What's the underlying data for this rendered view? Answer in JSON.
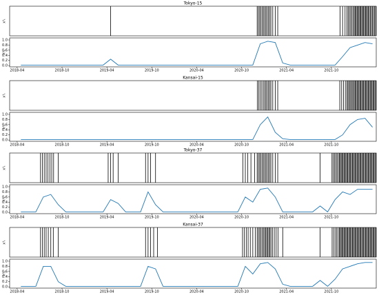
{
  "chart_data": [
    {
      "type": "event",
      "title": "Tokyo-15",
      "ylabel": "x¹ₜ",
      "color": "#000000",
      "xlim": [
        "2018-03",
        "2022-04"
      ],
      "x": [
        "2019-04",
        "2020-12",
        "2020-12",
        "2020-12",
        "2020-12",
        "2020-12",
        "2020-12",
        "2021-01",
        "2021-01",
        "2021-01",
        "2021-01",
        "2021-01",
        "2021-01",
        "2021-02",
        "2021-02",
        "2021-02",
        "2021-11",
        "2021-11",
        "2021-11",
        "2021-12",
        "2021-12",
        "2021-12",
        "2021-12",
        "2021-12",
        "2021-12",
        "2022-01",
        "2022-01",
        "2022-01",
        "2022-01",
        "2022-01",
        "2022-01",
        "2022-01",
        "2022-01",
        "2022-02",
        "2022-02",
        "2022-02",
        "2022-02",
        "2022-02",
        "2022-02",
        "2022-02",
        "2022-02",
        "2022-03",
        "2022-03",
        "2022-03",
        "2022-03",
        "2022-03",
        "2022-03",
        "2022-03"
      ]
    },
    {
      "type": "line",
      "ylabel": "λ¹ₜ",
      "color": "#1f77b4",
      "xlim": [
        "2018-03",
        "2022-04"
      ],
      "ylim": [
        -0.05,
        1.08
      ],
      "yticks": [
        {
          "value": 0,
          "label": "0.0"
        },
        0.2,
        0.4,
        0.6,
        0.8,
        {
          "value": 1,
          "label": "1.0"
        }
      ],
      "xticks": [
        "2018-04",
        "2018-10",
        "2019-04",
        "2019-10",
        "2020-04",
        "2020-10",
        "2021-04",
        "2021-10"
      ],
      "x": [
        "2018-04",
        "2018-05",
        "2018-06",
        "2018-07",
        "2018-08",
        "2018-09",
        "2018-10",
        "2018-11",
        "2018-12",
        "2019-01",
        "2019-02",
        "2019-03",
        "2019-04",
        "2019-05",
        "2019-06",
        "2019-07",
        "2019-08",
        "2019-09",
        "2019-10",
        "2019-11",
        "2019-12",
        "2020-01",
        "2020-02",
        "2020-03",
        "2020-04",
        "2020-05",
        "2020-06",
        "2020-07",
        "2020-08",
        "2020-09",
        "2020-10",
        "2020-11",
        "2020-12",
        "2021-01",
        "2021-02",
        "2021-03",
        "2021-04",
        "2021-05",
        "2021-06",
        "2021-07",
        "2021-08",
        "2021-09",
        "2021-10",
        "2021-11",
        "2021-12",
        "2022-01",
        "2022-02",
        "2022-03"
      ],
      "values": [
        0.02,
        0.02,
        0.02,
        0.02,
        0.02,
        0.02,
        0.02,
        0.02,
        0.02,
        0.02,
        0.02,
        0.02,
        0.25,
        0.02,
        0.02,
        0.02,
        0.02,
        0.02,
        0.02,
        0.02,
        0.02,
        0.02,
        0.02,
        0.02,
        0.02,
        0.02,
        0.02,
        0.02,
        0.02,
        0.02,
        0.02,
        0.02,
        0.85,
        0.95,
        0.9,
        0.1,
        0.02,
        0.02,
        0.02,
        0.02,
        0.02,
        0.02,
        0.02,
        0.35,
        0.7,
        0.8,
        0.9,
        0.85
      ]
    },
    {
      "type": "event",
      "title": "Kansai-15",
      "ylabel": "x¹ₜ",
      "color": "#000000",
      "xlim": [
        "2018-03",
        "2022-04"
      ],
      "x": [
        "2020-12",
        "2020-12",
        "2020-12",
        "2020-12",
        "2020-12",
        "2021-01",
        "2021-01",
        "2021-01",
        "2021-01",
        "2021-01",
        "2021-01",
        "2021-02",
        "2021-02",
        "2021-02",
        "2021-11",
        "2021-11",
        "2021-11",
        "2021-11",
        "2021-12",
        "2021-12",
        "2021-12",
        "2021-12",
        "2021-12",
        "2021-12",
        "2021-12",
        "2022-01",
        "2022-01",
        "2022-01",
        "2022-01",
        "2022-01",
        "2022-01",
        "2022-01",
        "2022-01",
        "2022-02",
        "2022-02",
        "2022-02",
        "2022-02",
        "2022-02",
        "2022-02",
        "2022-02",
        "2022-02",
        "2022-03",
        "2022-03",
        "2022-03",
        "2022-03",
        "2022-03",
        "2022-03",
        "2022-03",
        "2022-03"
      ]
    },
    {
      "type": "line",
      "ylabel": "λ¹ₜ",
      "color": "#1f77b4",
      "xlim": [
        "2018-03",
        "2022-04"
      ],
      "ylim": [
        -0.05,
        1.08
      ],
      "yticks": [
        {
          "value": 0,
          "label": "0.0"
        },
        0.2,
        0.4,
        0.6,
        0.8,
        {
          "value": 1,
          "label": "1.0"
        }
      ],
      "xticks": [
        "2018-04",
        "2018-10",
        "2019-04",
        "2019-10",
        "2020-04",
        "2020-10",
        "2021-04",
        "2021-10"
      ],
      "x": [
        "2018-04",
        "2018-05",
        "2018-06",
        "2018-07",
        "2018-08",
        "2018-09",
        "2018-10",
        "2018-11",
        "2018-12",
        "2019-01",
        "2019-02",
        "2019-03",
        "2019-04",
        "2019-05",
        "2019-06",
        "2019-07",
        "2019-08",
        "2019-09",
        "2019-10",
        "2019-11",
        "2019-12",
        "2020-01",
        "2020-02",
        "2020-03",
        "2020-04",
        "2020-05",
        "2020-06",
        "2020-07",
        "2020-08",
        "2020-09",
        "2020-10",
        "2020-11",
        "2020-12",
        "2021-01",
        "2021-02",
        "2021-03",
        "2021-04",
        "2021-05",
        "2021-06",
        "2021-07",
        "2021-08",
        "2021-09",
        "2021-10",
        "2021-11",
        "2021-12",
        "2022-01",
        "2022-02",
        "2022-03"
      ],
      "values": [
        0.02,
        0.02,
        0.02,
        0.02,
        0.02,
        0.02,
        0.02,
        0.02,
        0.02,
        0.02,
        0.02,
        0.02,
        0.02,
        0.02,
        0.02,
        0.02,
        0.02,
        0.02,
        0.02,
        0.02,
        0.02,
        0.02,
        0.02,
        0.02,
        0.02,
        0.02,
        0.02,
        0.02,
        0.02,
        0.02,
        0.02,
        0.02,
        0.6,
        0.9,
        0.3,
        0.05,
        0.02,
        0.02,
        0.02,
        0.02,
        0.02,
        0.02,
        0.02,
        0.2,
        0.6,
        0.8,
        0.85,
        0.5
      ]
    },
    {
      "type": "event",
      "title": "Tokyo-37",
      "ylabel": "x¹ₜ",
      "color": "#000000",
      "xlim": [
        "2018-03",
        "2022-04"
      ],
      "x": [
        "2018-07",
        "2018-07",
        "2018-07",
        "2018-07",
        "2018-08",
        "2018-08",
        "2018-08",
        "2018-08",
        "2018-09",
        "2019-04",
        "2019-04",
        "2019-04",
        "2019-05",
        "2019-09",
        "2019-09",
        "2019-09",
        "2019-10",
        "2020-10",
        "2020-10",
        "2020-10",
        "2020-11",
        "2020-11",
        "2020-12",
        "2020-12",
        "2020-12",
        "2020-12",
        "2020-12",
        "2020-12",
        "2021-01",
        "2021-01",
        "2021-01",
        "2021-01",
        "2021-01",
        "2021-01",
        "2021-02",
        "2021-02",
        "2021-02",
        "2021-08",
        "2021-10",
        "2021-10",
        "2021-10",
        "2021-10",
        "2021-10",
        "2021-10",
        "2021-11",
        "2021-11",
        "2021-11",
        "2021-11",
        "2021-11",
        "2021-11",
        "2021-11",
        "2021-11",
        "2021-12",
        "2021-12",
        "2021-12",
        "2021-12",
        "2021-12",
        "2021-12",
        "2021-12",
        "2021-12",
        "2022-01",
        "2022-01",
        "2022-01",
        "2022-01",
        "2022-01",
        "2022-01",
        "2022-01",
        "2022-01",
        "2022-02",
        "2022-02",
        "2022-02",
        "2022-02",
        "2022-02",
        "2022-02",
        "2022-02",
        "2022-02",
        "2022-03",
        "2022-03",
        "2022-03",
        "2022-03",
        "2022-03",
        "2022-03",
        "2022-03",
        "2022-03"
      ]
    },
    {
      "type": "line",
      "ylabel": "λ¹ₜ",
      "color": "#1f77b4",
      "xlim": [
        "2018-03",
        "2022-04"
      ],
      "ylim": [
        -0.05,
        1.08
      ],
      "yticks": [
        {
          "value": 0,
          "label": "0.0"
        },
        0.2,
        0.4,
        0.6,
        0.8,
        {
          "value": 1,
          "label": "1.0"
        }
      ],
      "xticks": [
        "2018-04",
        "2018-10",
        "2019-04",
        "2019-10",
        "2020-04",
        "2020-10",
        "2021-04",
        "2021-10"
      ],
      "x": [
        "2018-04",
        "2018-05",
        "2018-06",
        "2018-07",
        "2018-08",
        "2018-09",
        "2018-10",
        "2018-11",
        "2018-12",
        "2019-01",
        "2019-02",
        "2019-03",
        "2019-04",
        "2019-05",
        "2019-06",
        "2019-07",
        "2019-08",
        "2019-09",
        "2019-10",
        "2019-11",
        "2019-12",
        "2020-01",
        "2020-02",
        "2020-03",
        "2020-04",
        "2020-05",
        "2020-06",
        "2020-07",
        "2020-08",
        "2020-09",
        "2020-10",
        "2020-11",
        "2020-12",
        "2021-01",
        "2021-02",
        "2021-03",
        "2021-04",
        "2021-05",
        "2021-06",
        "2021-07",
        "2021-08",
        "2021-09",
        "2021-10",
        "2021-11",
        "2021-12",
        "2022-01",
        "2022-02",
        "2022-03"
      ],
      "values": [
        0.02,
        0.02,
        0.02,
        0.6,
        0.7,
        0.3,
        0.02,
        0.02,
        0.02,
        0.02,
        0.02,
        0.02,
        0.5,
        0.35,
        0.02,
        0.02,
        0.02,
        0.8,
        0.3,
        0.02,
        0.02,
        0.02,
        0.02,
        0.02,
        0.02,
        0.02,
        0.02,
        0.02,
        0.02,
        0.02,
        0.6,
        0.4,
        0.9,
        0.95,
        0.6,
        0.02,
        0.02,
        0.02,
        0.02,
        0.02,
        0.25,
        0.02,
        0.5,
        0.8,
        0.7,
        0.9,
        0.9,
        0.9
      ]
    },
    {
      "type": "event",
      "title": "Kansai-37",
      "ylabel": "x¹ₜ",
      "color": "#000000",
      "xlim": [
        "2018-03",
        "2022-04"
      ],
      "x": [
        "2018-07",
        "2018-07",
        "2018-07",
        "2018-07",
        "2018-08",
        "2018-08",
        "2018-08",
        "2018-09",
        "2019-09",
        "2019-09",
        "2019-09",
        "2019-10",
        "2019-10",
        "2020-10",
        "2020-10",
        "2020-10",
        "2020-10",
        "2020-11",
        "2020-11",
        "2020-11",
        "2020-12",
        "2020-12",
        "2020-12",
        "2020-12",
        "2020-12",
        "2020-12",
        "2021-01",
        "2021-01",
        "2021-01",
        "2021-01",
        "2021-01",
        "2021-01",
        "2021-01",
        "2021-02",
        "2021-02",
        "2021-02",
        "2021-02",
        "2021-03",
        "2021-08",
        "2021-10",
        "2021-10",
        "2021-10",
        "2021-10",
        "2021-10",
        "2021-11",
        "2021-11",
        "2021-11",
        "2021-11",
        "2021-11",
        "2021-11",
        "2021-11",
        "2021-11",
        "2021-12",
        "2021-12",
        "2021-12",
        "2021-12",
        "2021-12",
        "2021-12",
        "2021-12",
        "2021-12",
        "2022-01",
        "2022-01",
        "2022-01",
        "2022-01",
        "2022-01",
        "2022-01",
        "2022-01",
        "2022-01",
        "2022-02",
        "2022-02",
        "2022-02",
        "2022-02",
        "2022-02",
        "2022-02",
        "2022-02",
        "2022-02",
        "2022-03",
        "2022-03",
        "2022-03",
        "2022-03",
        "2022-03",
        "2022-03",
        "2022-03",
        "2022-03"
      ]
    },
    {
      "type": "line",
      "ylabel": "λ¹ₜ",
      "color": "#1f77b4",
      "xlim": [
        "2018-03",
        "2022-04"
      ],
      "ylim": [
        -0.05,
        1.08
      ],
      "yticks": [
        {
          "value": 0,
          "label": "0.0"
        },
        0.2,
        0.4,
        0.6,
        0.8,
        {
          "value": 1,
          "label": "1.0"
        }
      ],
      "xticks": [
        "2018-04",
        "2018-10",
        "2019-04",
        "2019-10",
        "2020-04",
        "2020-10",
        "2021-04",
        "2021-10"
      ],
      "x": [
        "2018-04",
        "2018-05",
        "2018-06",
        "2018-07",
        "2018-08",
        "2018-09",
        "2018-10",
        "2018-11",
        "2018-12",
        "2019-01",
        "2019-02",
        "2019-03",
        "2019-04",
        "2019-05",
        "2019-06",
        "2019-07",
        "2019-08",
        "2019-09",
        "2019-10",
        "2019-11",
        "2019-12",
        "2020-01",
        "2020-02",
        "2020-03",
        "2020-04",
        "2020-05",
        "2020-06",
        "2020-07",
        "2020-08",
        "2020-09",
        "2020-10",
        "2020-11",
        "2020-12",
        "2021-01",
        "2021-02",
        "2021-03",
        "2021-04",
        "2021-05",
        "2021-06",
        "2021-07",
        "2021-08",
        "2021-09",
        "2021-10",
        "2021-11",
        "2021-12",
        "2022-01",
        "2022-02",
        "2022-03"
      ],
      "values": [
        0.02,
        0.02,
        0.02,
        0.8,
        0.8,
        0.2,
        0.02,
        0.02,
        0.02,
        0.02,
        0.02,
        0.02,
        0.02,
        0.02,
        0.02,
        0.02,
        0.02,
        0.8,
        0.7,
        0.02,
        0.02,
        0.02,
        0.02,
        0.02,
        0.02,
        0.02,
        0.02,
        0.02,
        0.02,
        0.02,
        0.8,
        0.5,
        0.9,
        0.95,
        0.7,
        0.1,
        0.02,
        0.02,
        0.02,
        0.02,
        0.25,
        0.02,
        0.3,
        0.7,
        0.8,
        0.9,
        0.95,
        0.95
      ]
    }
  ]
}
